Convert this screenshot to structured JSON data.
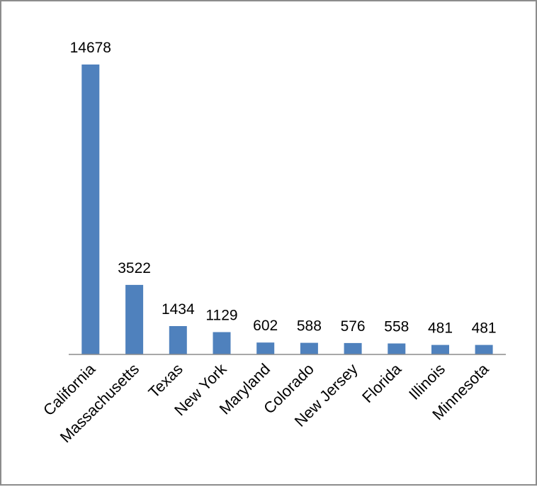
{
  "chart_data": {
    "type": "bar",
    "title": "",
    "xlabel": "",
    "ylabel": "",
    "categories": [
      "California",
      "Massachusetts",
      "Texas",
      "New York",
      "Maryland",
      "Colorado",
      "New Jersey",
      "Florida",
      "Illinois",
      "Minnesota"
    ],
    "values": [
      14678,
      3522,
      1434,
      1129,
      602,
      588,
      576,
      558,
      481,
      481
    ],
    "ylim": [
      0,
      14678
    ],
    "grid": false,
    "legend": "none",
    "bar_color": "#4f81bd",
    "axis_color": "#8c8c8c"
  }
}
